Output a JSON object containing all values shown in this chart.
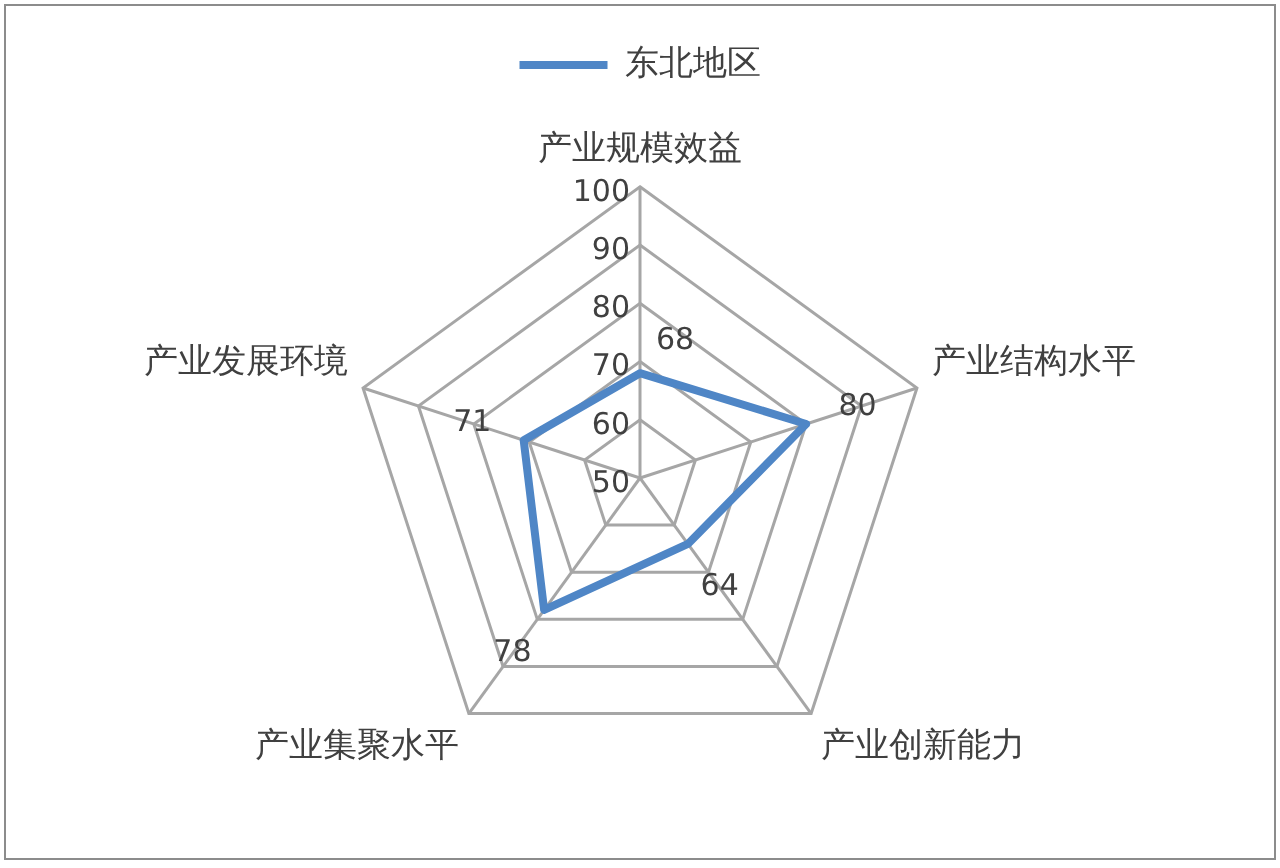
{
  "chart_data": {
    "type": "radar",
    "categories": [
      "产业规模效益",
      "产业结构水平",
      "产业创新能力",
      "产业集聚水平",
      "产业发展环境"
    ],
    "series": [
      {
        "name": "东北地区",
        "color": "#4f86c6",
        "values": [
          68,
          80,
          64,
          78,
          71
        ]
      }
    ],
    "ylim": [
      50,
      100
    ],
    "yticks": [
      50,
      60,
      70,
      80,
      90,
      100
    ],
    "data_labels": true,
    "legend": "top",
    "grid": true,
    "marker": "none",
    "line_style": "solid"
  }
}
